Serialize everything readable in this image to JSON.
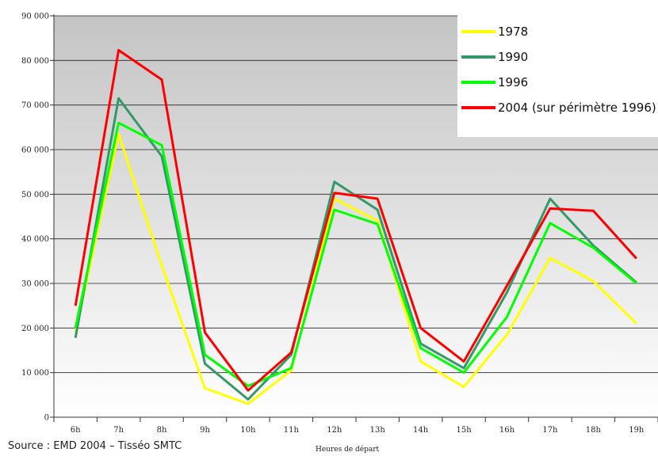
{
  "source_note": "Source : EMD 2004 – Tisséo SMTC",
  "chart_data": {
    "type": "line",
    "title": "",
    "xlabel": "Heures de départ",
    "ylabel": "",
    "categories": [
      "6h",
      "7h",
      "8h",
      "9h",
      "10h",
      "11h",
      "12h",
      "13h",
      "14h",
      "15h",
      "16h",
      "17h",
      "18h",
      "19h"
    ],
    "ylim": [
      0,
      90000
    ],
    "yticks": [
      0,
      10000,
      20000,
      30000,
      40000,
      50000,
      60000,
      70000,
      80000,
      90000
    ],
    "ytick_labels": [
      "0",
      "10 000",
      "20 000",
      "30 000",
      "40 000",
      "50 000",
      "60 000",
      "70 000",
      "80 000",
      "90 000"
    ],
    "grid": true,
    "legend_position": "top-right",
    "series": [
      {
        "name": "1978",
        "color": "#ffff00",
        "values": [
          19000,
          63500,
          34000,
          6500,
          3000,
          10500,
          49000,
          44000,
          12500,
          6800,
          18500,
          35700,
          30500,
          21000
        ]
      },
      {
        "name": "1990",
        "color": "#339966",
        "values": [
          17800,
          71500,
          58500,
          12000,
          4000,
          14000,
          52800,
          46500,
          16500,
          11000,
          28000,
          49000,
          38500,
          30200
        ]
      },
      {
        "name": "1996",
        "color": "#00ff00",
        "values": [
          20000,
          66000,
          61000,
          14000,
          7000,
          11000,
          46500,
          43300,
          15500,
          10000,
          22500,
          43500,
          38000,
          30000
        ]
      },
      {
        "name": "2004 (sur périmètre 1996)",
        "color": "#ff0000",
        "values": [
          25000,
          82300,
          75700,
          19000,
          6000,
          14500,
          50300,
          49000,
          20000,
          12500,
          29500,
          46800,
          46300,
          35600
        ]
      }
    ]
  }
}
